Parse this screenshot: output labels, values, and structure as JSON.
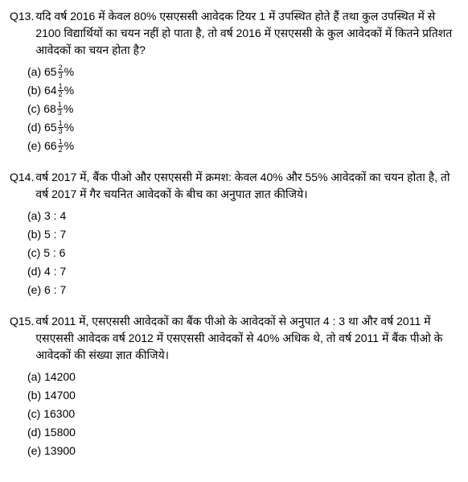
{
  "questions": [
    {
      "num": "Q13.",
      "text": "यदि वर्ष 2016 में केवल 80% एसएससी आवेदक टियर 1 में उपस्थित होते हैं तथा कुल उपस्थित में से 2100 विद्यार्थियों का चयन नहीं हो पाता है, तो वर्ष 2016 में एसएससी के कुल आवेदकों में कितने प्रतिशत आवेदकों का चयन होता है?",
      "options": [
        {
          "label": "(a) 65",
          "frac_num": "2",
          "frac_den": "3",
          "suffix": "%"
        },
        {
          "label": "(b) 64",
          "frac_num": "1",
          "frac_den": "2",
          "suffix": "%"
        },
        {
          "label": "(c) 68",
          "frac_num": "1",
          "frac_den": "3",
          "suffix": "%"
        },
        {
          "label": "(d) 65",
          "frac_num": "1",
          "frac_den": "3",
          "suffix": "%"
        },
        {
          "label": "(e) 66",
          "frac_num": "1",
          "frac_den": "2",
          "suffix": "%"
        }
      ]
    },
    {
      "num": "Q14.",
      "text": "वर्ष 2017 में, बैंक पीओ और एसएससी में क्रमश: केवल 40% और 55% आवेदकों का चयन होता है, तो वर्ष 2017 में गैर चयनित आवेदकों के बीच का अनुपात ज्ञात कीजिये।",
      "options": [
        {
          "label": "(a) 3 : 4"
        },
        {
          "label": "(b) 5 : 7"
        },
        {
          "label": "(c) 5 : 6"
        },
        {
          "label": "(d) 4 : 7"
        },
        {
          "label": "(e) 6 : 7"
        }
      ]
    },
    {
      "num": "Q15.",
      "text": "वर्ष 2011 में, एसएससी आवेदकों का बैंक पीओ के आवेदकों से अनुपात 4 : 3 था और वर्ष 2011 में एसएससी आवेदक वर्ष 2012 में एसएससी आवेदकों से 40% अधिक थे, तो  वर्ष 2011 में बैंक पीओ के आवेदकों की संख्या ज्ञात कीजिये।",
      "options": [
        {
          "label": "(a) 14200"
        },
        {
          "label": "(b) 14700"
        },
        {
          "label": "(c) 16300"
        },
        {
          "label": "(d) 15800"
        },
        {
          "label": "(e) 13900"
        }
      ]
    }
  ]
}
